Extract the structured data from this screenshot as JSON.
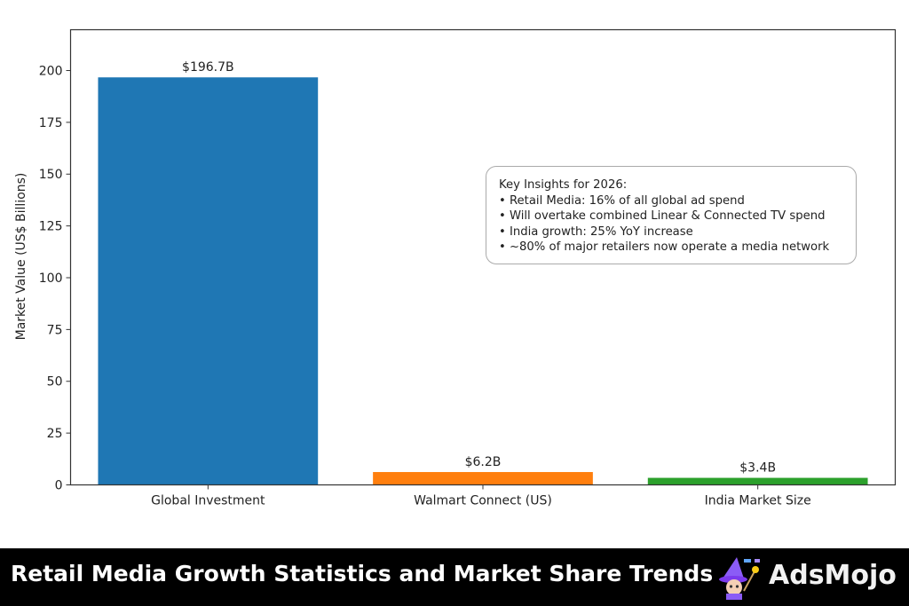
{
  "chart_data": {
    "type": "bar",
    "categories": [
      "Global Investment",
      "Walmart Connect (US)",
      "India Market Size"
    ],
    "values": [
      196.7,
      6.2,
      3.4
    ],
    "data_labels": [
      "$196.7B",
      "$6.2B",
      "$3.4B"
    ],
    "colors": [
      "#1f77b4",
      "#ff7f0e",
      "#2ca02c"
    ],
    "xlabel": "",
    "ylabel": "Market Value (US$ Billions)",
    "ylim": [
      0,
      219.7
    ],
    "yticks": [
      0,
      25,
      50,
      75,
      100,
      125,
      150,
      175,
      200
    ],
    "grid": false,
    "annotation": {
      "title": "Key Insights for 2026:",
      "items": [
        "• Retail Media: 16% of all global ad spend",
        "• Will overtake combined Linear & Connected TV spend",
        "• India growth: 25% YoY increase",
        "• ~80% of major retailers now operate a media network"
      ]
    }
  },
  "footer": {
    "title": "Retail Media Growth Statistics and Market Share Trends",
    "brand": "AdsMojo",
    "logo_icon": "wizard-mascot-icon"
  }
}
